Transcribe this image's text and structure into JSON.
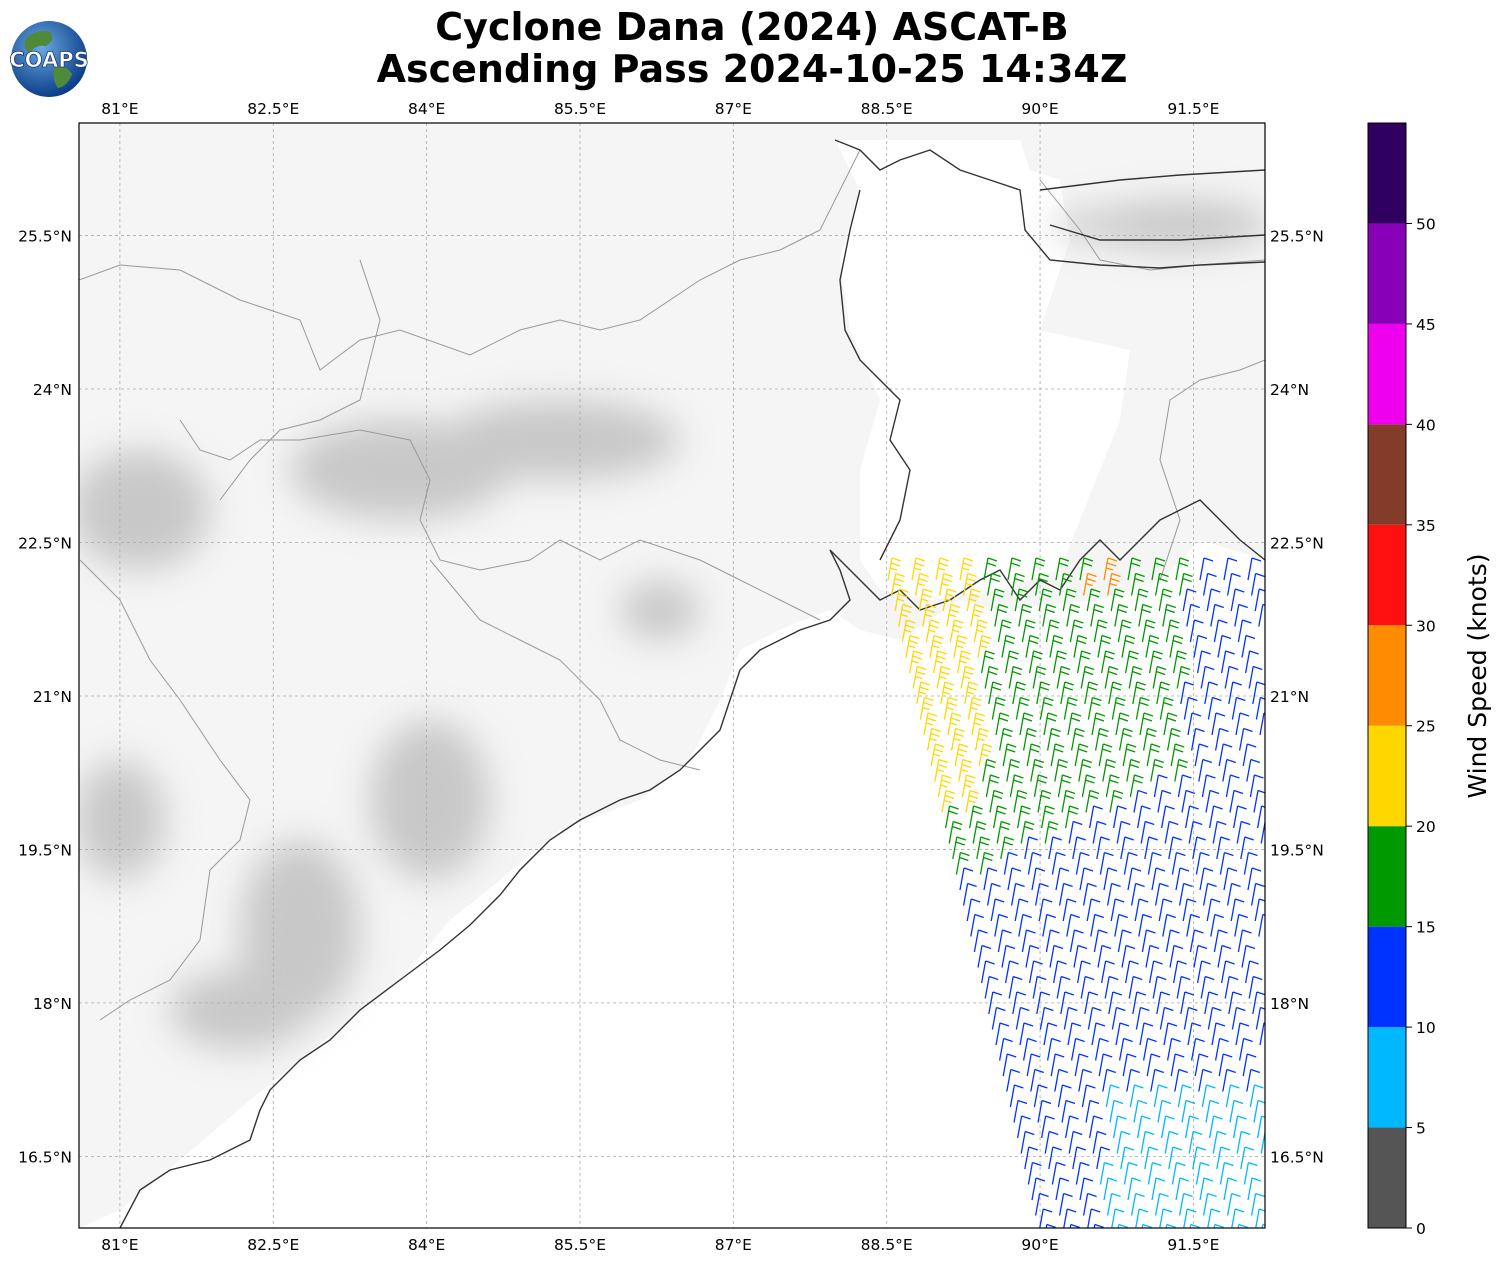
{
  "title": {
    "line1": "Cyclone Dana (2024) ASCAT-B",
    "line2": "Ascending Pass 2024-10-25 14:34Z"
  },
  "logo": {
    "text": "COAPS",
    "icon": "globe-logo-icon"
  },
  "map": {
    "lon_range": [
      80.6,
      92.2
    ],
    "lat_range": [
      15.8,
      26.6
    ],
    "grid": true,
    "lon_ticks": [
      {
        "value": 81,
        "label": "81°E"
      },
      {
        "value": 82.5,
        "label": "82.5°E"
      },
      {
        "value": 84,
        "label": "84°E"
      },
      {
        "value": 85.5,
        "label": "85.5°E"
      },
      {
        "value": 87,
        "label": "87°E"
      },
      {
        "value": 88.5,
        "label": "88.5°E"
      },
      {
        "value": 90,
        "label": "90°E"
      },
      {
        "value": 91.5,
        "label": "91.5°E"
      }
    ],
    "lat_ticks": [
      {
        "value": 25.5,
        "label": "25.5°N"
      },
      {
        "value": 24,
        "label": "24°N"
      },
      {
        "value": 22.5,
        "label": "22.5°N"
      },
      {
        "value": 21,
        "label": "21°N"
      },
      {
        "value": 19.5,
        "label": "19.5°N"
      },
      {
        "value": 18,
        "label": "18°N"
      },
      {
        "value": 16.5,
        "label": "16.5°N"
      }
    ]
  },
  "colorbar": {
    "label": "Wind Speed (knots)",
    "bounds": [
      0,
      5,
      10,
      15,
      20,
      25,
      30,
      35,
      40,
      45,
      50,
      55
    ],
    "tick_labels": [
      "0",
      "5",
      "10",
      "15",
      "20",
      "25",
      "30",
      "35",
      "40",
      "45",
      "50"
    ],
    "colors": [
      "#555555",
      "#00b8ff",
      "#0033ff",
      "#009900",
      "#ffd700",
      "#ff8c00",
      "#ff1010",
      "#833c29",
      "#ee00ee",
      "#8800b8",
      "#300060"
    ]
  }
}
